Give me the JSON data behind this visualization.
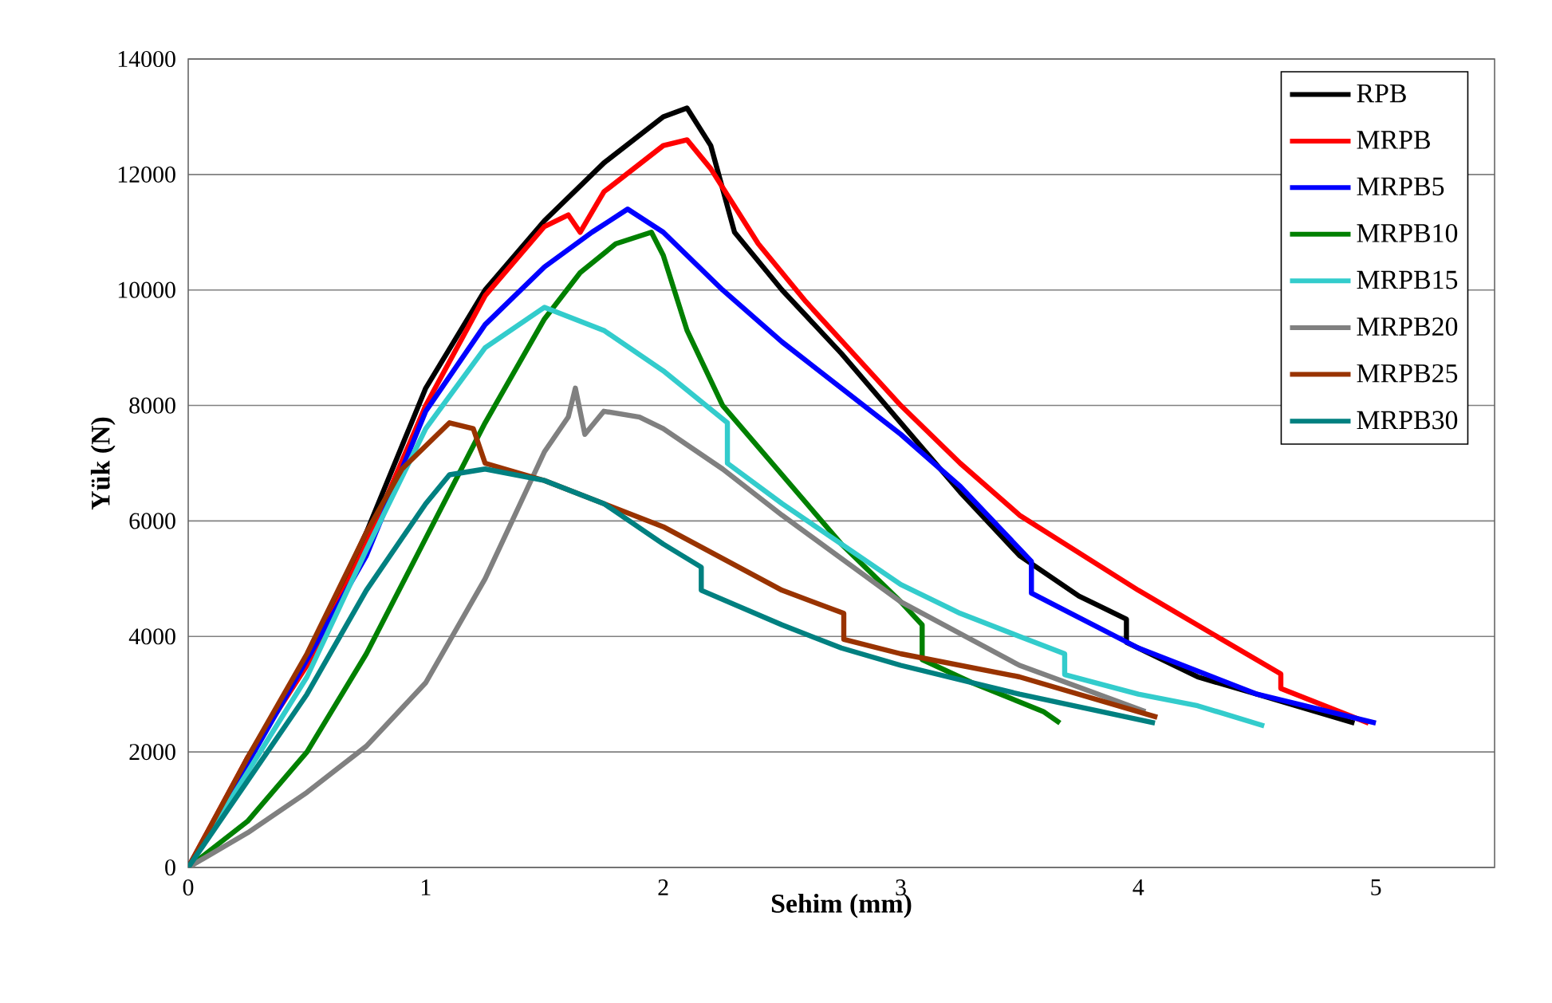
{
  "chart_data": {
    "type": "line",
    "xlabel": "Sehim (mm)",
    "ylabel": "Yük (N)",
    "xlim": [
      0,
      5.5
    ],
    "ylim": [
      0,
      14000
    ],
    "xticks": [
      0,
      1,
      2,
      3,
      4,
      5
    ],
    "yticks": [
      0,
      2000,
      4000,
      6000,
      8000,
      10000,
      12000,
      14000
    ],
    "grid": "y",
    "legend": "top right",
    "marker": "none",
    "line_style": "solid",
    "series": [
      {
        "name": "RPB",
        "color": "#000000",
        "x": [
          0,
          0.1,
          0.25,
          0.5,
          0.75,
          1.0,
          1.25,
          1.5,
          1.75,
          2.0,
          2.1,
          2.2,
          2.3,
          2.5,
          2.75,
          3.0,
          3.25,
          3.5,
          3.75,
          3.95,
          3.95,
          4.25,
          4.5,
          4.91
        ],
        "values": [
          0,
          700,
          1900,
          3600,
          5800,
          8300,
          10000,
          11200,
          12200,
          13000,
          13150,
          12500,
          11000,
          10000,
          8900,
          7700,
          6500,
          5400,
          4700,
          4300,
          3900,
          3300,
          3000,
          2500
        ]
      },
      {
        "name": "MRPB",
        "color": "#ff0000",
        "x": [
          0,
          0.25,
          0.5,
          0.75,
          1.0,
          1.25,
          1.5,
          1.6,
          1.65,
          1.75,
          2.0,
          2.1,
          2.2,
          2.4,
          2.6,
          3.0,
          3.25,
          3.5,
          4.0,
          4.6,
          4.6,
          4.97
        ],
        "values": [
          0,
          1900,
          3500,
          5600,
          8000,
          9900,
          11100,
          11300,
          11000,
          11700,
          12500,
          12600,
          12100,
          10800,
          9800,
          8000,
          7000,
          6100,
          4800,
          3350,
          3100,
          2500
        ]
      },
      {
        "name": "MRPB5",
        "color": "#0000ff",
        "x": [
          0,
          0.5,
          0.75,
          1.0,
          1.25,
          1.5,
          1.7,
          1.85,
          2.0,
          2.25,
          2.5,
          3.0,
          3.25,
          3.55,
          3.55,
          4.0,
          4.5,
          5.0
        ],
        "values": [
          0,
          null,
          5400,
          7900,
          9400,
          10400,
          11000,
          11400,
          11000,
          10000,
          9100,
          7500,
          6600,
          5300,
          4750,
          3800,
          3000,
          2500
        ]
      },
      {
        "name": "MRPB10",
        "color": "#008000",
        "x": [
          0,
          0.25,
          0.5,
          0.75,
          1.0,
          1.25,
          1.5,
          1.65,
          1.8,
          1.95,
          2.0,
          2.1,
          2.25,
          2.5,
          2.75,
          3.0,
          3.09,
          3.09,
          3.3,
          3.6,
          3.67
        ],
        "values": [
          0,
          800,
          2000,
          3700,
          5700,
          7700,
          9500,
          10300,
          10800,
          11000,
          10600,
          9300,
          8000,
          6800,
          5600,
          4600,
          4200,
          3600,
          3200,
          2700,
          2500
        ]
      },
      {
        "name": "MRPB15",
        "color": "#33cccc",
        "x": [
          0,
          0.5,
          0.75,
          1.0,
          1.25,
          1.5,
          1.75,
          2.0,
          2.27,
          2.27,
          2.5,
          2.75,
          3.0,
          3.25,
          3.5,
          3.69,
          3.69,
          4.0,
          4.25,
          4.53
        ],
        "values": [
          0,
          3300,
          5500,
          7600,
          9000,
          9700,
          9300,
          8600,
          7700,
          7000,
          6300,
          5600,
          4900,
          4400,
          4000,
          3700,
          3340,
          3000,
          2800,
          2450
        ]
      },
      {
        "name": "MRPB20",
        "color": "#808080",
        "x": [
          0,
          0.25,
          0.5,
          0.75,
          1.0,
          1.25,
          1.5,
          1.6,
          1.63,
          1.67,
          1.75,
          1.9,
          2.0,
          2.25,
          2.5,
          3.0,
          3.5,
          4.03
        ],
        "values": [
          0,
          600,
          1300,
          2100,
          3200,
          5000,
          7200,
          7800,
          8300,
          7500,
          7900,
          7800,
          7600,
          6900,
          6100,
          4600,
          3500,
          2700
        ]
      },
      {
        "name": "MRPB25",
        "color": "#993300",
        "x": [
          0,
          0.25,
          0.5,
          0.75,
          0.9,
          1.0,
          1.1,
          1.2,
          1.25,
          1.5,
          2.0,
          2.5,
          2.76,
          2.76,
          3.0,
          3.5,
          4.08
        ],
        "values": [
          0,
          1900,
          3700,
          5800,
          6900,
          7300,
          7700,
          7600,
          7000,
          6700,
          5900,
          4800,
          4400,
          3950,
          3700,
          3300,
          2600
        ]
      },
      {
        "name": "MRPB30",
        "color": "#008080",
        "x": [
          0,
          0.25,
          0.5,
          0.75,
          1.0,
          1.1,
          1.25,
          1.5,
          1.75,
          2.0,
          2.16,
          2.16,
          2.5,
          2.75,
          3.0,
          3.5,
          4.07
        ],
        "values": [
          0,
          1500,
          3000,
          4800,
          6300,
          6800,
          6900,
          6700,
          6300,
          5600,
          5200,
          4800,
          4200,
          3800,
          3500,
          3000,
          2500
        ]
      }
    ]
  }
}
